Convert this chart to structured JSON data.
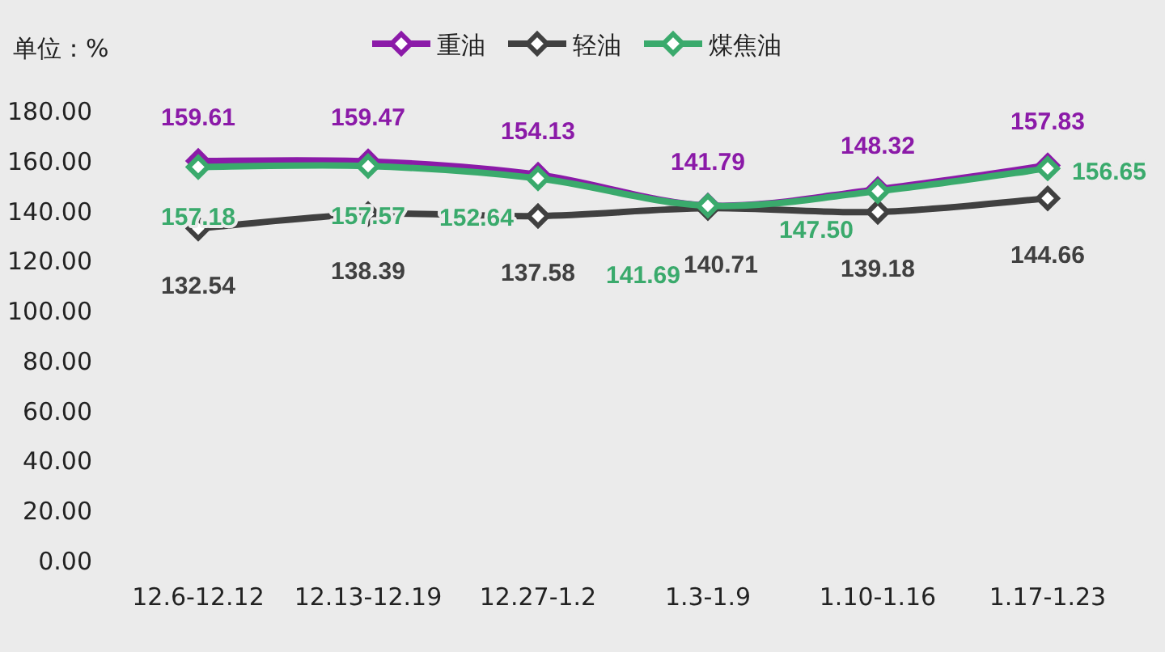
{
  "chart_data": {
    "type": "line",
    "ylabel": "单位：%",
    "categories": [
      "12.6-12.12",
      "12.13-12.19",
      "12.27-1.2",
      "1.3-1.9",
      "1.10-1.16",
      "1.17-1.23"
    ],
    "ylim": [
      0,
      180
    ],
    "yticks": [
      {
        "value": 0,
        "label": "0.00"
      },
      {
        "value": 20,
        "label": "20.00"
      },
      {
        "value": 40,
        "label": "40.00"
      },
      {
        "value": 60,
        "label": "60.00"
      },
      {
        "value": 80,
        "label": "80.00"
      },
      {
        "value": 100,
        "label": "100.00"
      },
      {
        "value": 120,
        "label": "120.00"
      },
      {
        "value": 140,
        "label": "140.00"
      },
      {
        "value": 160,
        "label": "160.00"
      },
      {
        "value": 180,
        "label": "180.00"
      }
    ],
    "grid": false,
    "legend": "top",
    "marker": "diamond",
    "line_style": "solid",
    "series": [
      {
        "name": "重油",
        "color": "#8b1aa8",
        "values": [
          159.61,
          159.47,
          154.13,
          141.79,
          148.32,
          157.83
        ],
        "value_labels": [
          "159.61",
          "159.47",
          "154.13",
          "141.79",
          "148.32",
          "157.83"
        ]
      },
      {
        "name": "轻油",
        "color": "#404040",
        "values": [
          132.54,
          138.39,
          137.58,
          140.71,
          139.18,
          144.66
        ],
        "value_labels": [
          "132.54",
          "138.39",
          "137.58",
          "140.71",
          "139.18",
          "144.66"
        ]
      },
      {
        "name": "煤焦油",
        "color": "#3aaa6c",
        "values": [
          157.18,
          157.57,
          152.64,
          141.69,
          147.5,
          156.65
        ],
        "value_labels": [
          "157.18",
          "157.57",
          "152.64",
          "141.69",
          "147.50",
          "156.65"
        ]
      }
    ]
  }
}
